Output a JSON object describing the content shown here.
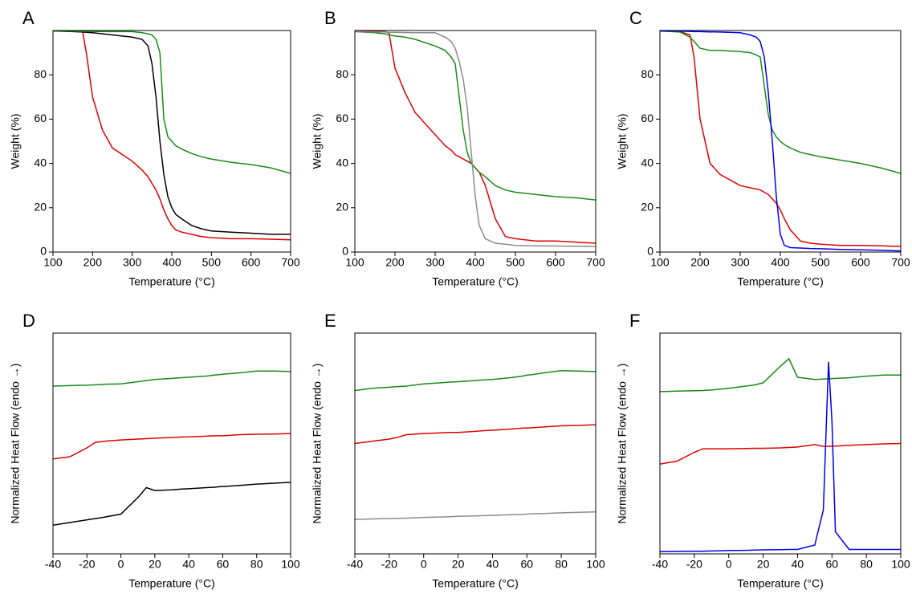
{
  "chart_data": [
    {
      "type": "line",
      "title": "A",
      "xlabel": "Temperature (°C)",
      "ylabel": "Weight (%)",
      "x": [
        100,
        150,
        175,
        185,
        200,
        225,
        250,
        300,
        325,
        340,
        350,
        360,
        370,
        380,
        390,
        400,
        410,
        425,
        450,
        475,
        500,
        550,
        600,
        650,
        700
      ],
      "xlim": [
        100,
        700
      ],
      "xticks": [
        100,
        200,
        300,
        400,
        500,
        600,
        700
      ],
      "ylim": [
        0,
        100
      ],
      "yticks": [
        0,
        20,
        40,
        60,
        80
      ],
      "series": [
        {
          "color": "#e00000",
          "values": [
            100,
            99.8,
            99.5,
            89,
            70,
            55,
            47,
            41,
            37,
            34,
            31,
            28,
            24,
            19,
            15,
            12,
            10,
            9,
            8,
            7,
            6.5,
            6,
            6,
            5.8,
            5.5
          ]
        },
        {
          "color": "#000000",
          "values": [
            99.8,
            99.5,
            99.3,
            99.2,
            99,
            98.5,
            98,
            97,
            96,
            93,
            85,
            70,
            50,
            35,
            25,
            20,
            17,
            15,
            12,
            10.5,
            9.5,
            9,
            8.5,
            8,
            8
          ]
        },
        {
          "color": "#1a8a1a",
          "values": [
            99.8,
            99.7,
            99.6,
            99.6,
            99.6,
            99.5,
            99.5,
            99.5,
            99,
            98.5,
            98,
            96,
            90,
            60,
            52,
            50,
            48,
            46.5,
            44.5,
            43,
            42,
            40.5,
            39.5,
            38,
            35.5
          ]
        }
      ]
    },
    {
      "type": "line",
      "title": "B",
      "xlabel": "Temperature (°C)",
      "ylabel": "Weight (%)",
      "x": [
        100,
        150,
        175,
        185,
        200,
        225,
        250,
        300,
        325,
        340,
        350,
        360,
        370,
        380,
        390,
        400,
        410,
        425,
        450,
        475,
        500,
        550,
        600,
        650,
        700
      ],
      "xlim": [
        100,
        700
      ],
      "xticks": [
        100,
        200,
        300,
        400,
        500,
        600,
        700
      ],
      "ylim": [
        0,
        100
      ],
      "yticks": [
        0,
        20,
        40,
        60,
        80
      ],
      "series": [
        {
          "color": "#e00000",
          "values": [
            100,
            99.8,
            99.5,
            99,
            83,
            72,
            63,
            53,
            48,
            46,
            44,
            43,
            42,
            41,
            40,
            38,
            36,
            30,
            15,
            7,
            6,
            5,
            5,
            4.5,
            4
          ]
        },
        {
          "color": "#1a8a1a",
          "values": [
            99.5,
            99,
            98.5,
            98,
            97.5,
            97,
            96,
            93,
            91,
            88,
            85,
            70,
            55,
            45,
            40,
            38,
            36,
            34,
            30,
            28,
            27,
            26,
            25,
            24.5,
            23.5
          ]
        },
        {
          "color": "#8c8c8c",
          "values": [
            99.5,
            99.4,
            99.3,
            99.2,
            99.2,
            99.1,
            99,
            99,
            97,
            95,
            92,
            86,
            78,
            65,
            45,
            25,
            12,
            6,
            4,
            3.5,
            3,
            2.8,
            2.7,
            2.6,
            2.5
          ]
        }
      ]
    },
    {
      "type": "line",
      "title": "C",
      "xlabel": "Temperature (°C)",
      "ylabel": "Weight (%)",
      "x": [
        100,
        150,
        175,
        185,
        200,
        225,
        250,
        300,
        325,
        340,
        350,
        360,
        370,
        380,
        390,
        400,
        410,
        425,
        450,
        475,
        500,
        550,
        600,
        650,
        700
      ],
      "xlim": [
        100,
        700
      ],
      "xticks": [
        100,
        200,
        300,
        400,
        500,
        600,
        700
      ],
      "ylim": [
        0,
        100
      ],
      "yticks": [
        0,
        20,
        40,
        60,
        80
      ],
      "series": [
        {
          "color": "#e00000",
          "values": [
            100,
            99.5,
            98,
            88,
            60,
            40,
            35,
            30,
            29,
            28.5,
            28,
            27,
            26,
            24,
            22,
            19,
            15,
            10,
            5,
            4,
            3.5,
            3,
            3,
            2.8,
            2.5
          ]
        },
        {
          "color": "#1a8a1a",
          "values": [
            99.8,
            99.3,
            97,
            95,
            92,
            91,
            91,
            90.5,
            90,
            89,
            88,
            75,
            62,
            55,
            52,
            50,
            48.5,
            47,
            45,
            44,
            43,
            41.5,
            40,
            38,
            35.5
          ]
        },
        {
          "color": "#0000ee",
          "values": [
            99.8,
            99.7,
            99.6,
            99.5,
            99.5,
            99.4,
            99.3,
            99,
            98,
            97,
            95,
            88,
            72,
            50,
            25,
            8,
            3,
            2,
            1.8,
            1.6,
            1.5,
            1.2,
            1,
            0.8,
            0.5
          ]
        }
      ]
    },
    {
      "type": "line",
      "title": "D",
      "xlabel": "Temperature (°C)",
      "ylabel": "Normalized Heat Flow (endo →)",
      "x": [
        -40,
        -30,
        -20,
        -15,
        -10,
        0,
        10,
        15,
        20,
        30,
        35,
        40,
        50,
        55,
        58,
        60,
        62,
        70,
        80,
        90,
        100
      ],
      "xlim": [
        -40,
        100
      ],
      "xticks": [
        -40,
        -20,
        0,
        20,
        40,
        60,
        80,
        100
      ],
      "ylim": [
        0,
        100
      ],
      "series": [
        {
          "color": "#1a8a1a",
          "values": [
            76,
            76.2,
            76.4,
            76.6,
            76.8,
            77,
            78,
            78.5,
            79,
            79.5,
            79.8,
            80,
            80.5,
            81,
            81.2,
            81.4,
            81.5,
            82,
            82.8,
            82.8,
            82.6
          ]
        },
        {
          "color": "#e00000",
          "values": [
            43,
            44,
            48,
            50.5,
            51,
            51.6,
            52,
            52.2,
            52.4,
            52.7,
            52.9,
            53,
            53.3,
            53.5,
            53.5,
            53.5,
            53.6,
            54,
            54.2,
            54.3,
            54.5
          ]
        },
        {
          "color": "#000000",
          "values": [
            13,
            14.2,
            15.4,
            16,
            16.6,
            18,
            25.5,
            30,
            28.7,
            29,
            29.3,
            29.5,
            30,
            30.2,
            30.4,
            30.5,
            30.6,
            31,
            31.6,
            32,
            32.4
          ]
        }
      ]
    },
    {
      "type": "line",
      "title": "E",
      "xlabel": "Temperature (°C)",
      "ylabel": "Normalized Heat Flow (endo →)",
      "x": [
        -40,
        -30,
        -20,
        -15,
        -10,
        0,
        10,
        15,
        20,
        30,
        35,
        40,
        50,
        55,
        58,
        60,
        62,
        70,
        80,
        90,
        100
      ],
      "xlim": [
        -40,
        100
      ],
      "xticks": [
        -40,
        -20,
        0,
        20,
        40,
        60,
        80,
        100
      ],
      "ylim": [
        0,
        100
      ],
      "series": [
        {
          "color": "#1a8a1a",
          "values": [
            74,
            75,
            75.5,
            75.8,
            76,
            77,
            77.5,
            77.8,
            78,
            78.5,
            78.8,
            79,
            79.8,
            80.3,
            80.6,
            81,
            81.1,
            82,
            83,
            82.8,
            82.6
          ]
        },
        {
          "color": "#e00000",
          "values": [
            50,
            51,
            52,
            52.8,
            54,
            54.5,
            54.8,
            55,
            55,
            55.5,
            55.8,
            56,
            56.5,
            56.8,
            57,
            57,
            57.1,
            57.5,
            58,
            58.2,
            58.5
          ]
        },
        {
          "color": "#8c8c8c",
          "values": [
            15.6,
            15.8,
            16,
            16.1,
            16.2,
            16.5,
            16.7,
            16.8,
            17,
            17.2,
            17.3,
            17.4,
            17.7,
            17.8,
            17.9,
            18,
            18.1,
            18.3,
            18.6,
            18.8,
            19
          ]
        }
      ]
    },
    {
      "type": "line",
      "title": "F",
      "xlabel": "Temperature (°C)",
      "ylabel": "Normalized Heat Flow (endo →)",
      "x": [
        -40,
        -30,
        -20,
        -15,
        -10,
        0,
        10,
        15,
        20,
        30,
        35,
        40,
        50,
        55,
        58,
        60,
        62,
        70,
        80,
        90,
        100
      ],
      "xlim": [
        -40,
        100
      ],
      "xticks": [
        -40,
        -20,
        0,
        20,
        40,
        60,
        80,
        100
      ],
      "ylim": [
        0,
        100
      ],
      "series": [
        {
          "color": "#1a8a1a",
          "values": [
            73.5,
            73.7,
            73.9,
            74,
            74.2,
            75,
            76,
            76.5,
            77.5,
            85,
            88.4,
            80,
            79,
            79.2,
            79.3,
            79.4,
            79.5,
            79.8,
            80.5,
            81,
            81
          ]
        },
        {
          "color": "#e00000",
          "values": [
            40.7,
            42,
            46,
            47.6,
            47.6,
            47.6,
            47.7,
            47.8,
            47.8,
            48,
            48.2,
            48.4,
            49.5,
            48.7,
            48.7,
            48.8,
            48.8,
            49.2,
            49.5,
            49.8,
            50
          ]
        },
        {
          "color": "#0000ee",
          "values": [
            1,
            1.1,
            1.2,
            1.2,
            1.3,
            1.5,
            1.6,
            1.7,
            1.8,
            1.9,
            2,
            2,
            4,
            20,
            87,
            60,
            10,
            2,
            2,
            2,
            2
          ]
        }
      ]
    }
  ]
}
